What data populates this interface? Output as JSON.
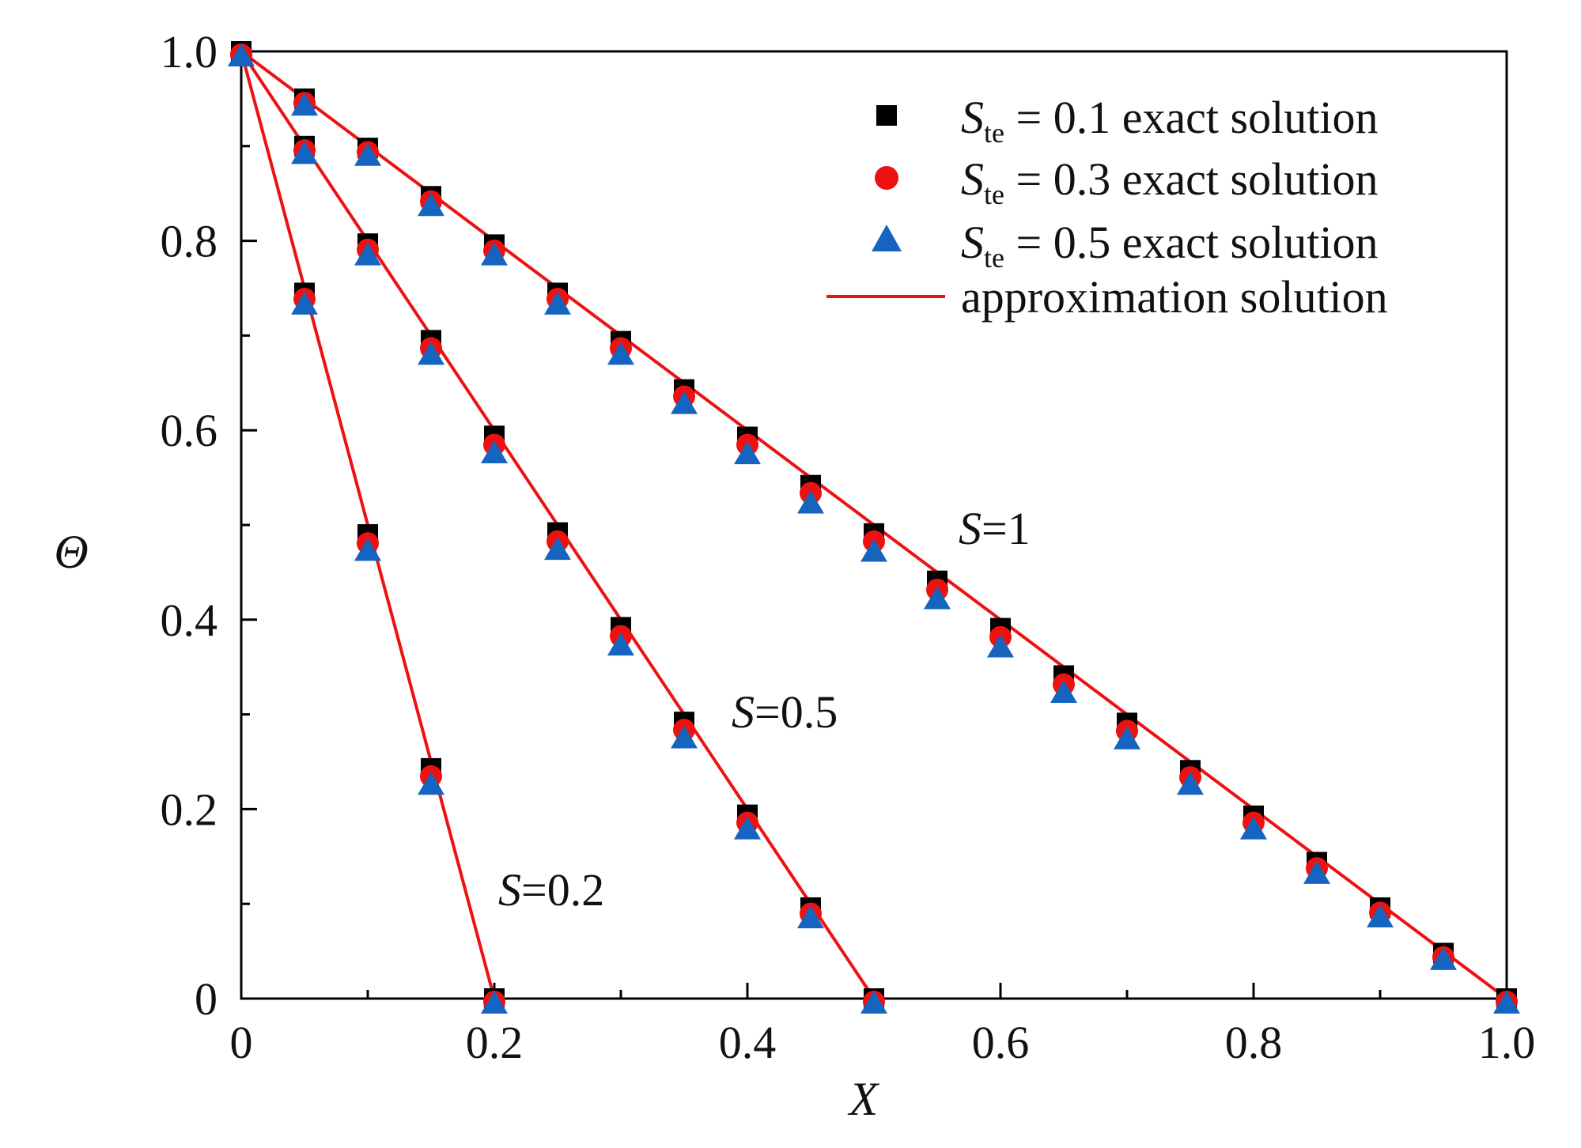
{
  "chart_data": {
    "type": "line",
    "xlabel": "X",
    "ylabel": "Θ",
    "xlim": [
      0,
      1.0
    ],
    "ylim": [
      0,
      1.0
    ],
    "xticks": [
      "0",
      "0.2",
      "0.4",
      "0.6",
      "0.8",
      "1.0"
    ],
    "yticks": [
      "0",
      "0.2",
      "0.4",
      "0.6",
      "0.8",
      "1.0"
    ],
    "grid": false,
    "legend_position": "top-right",
    "legend": [
      {
        "symbol": "S",
        "subscript": "te",
        "rest": " = 0.1 exact solution",
        "marker": "square",
        "color": "#000000"
      },
      {
        "symbol": "S",
        "subscript": "te",
        "rest": " = 0.3 exact solution",
        "marker": "circle",
        "color": "#ee1111"
      },
      {
        "symbol": "S",
        "subscript": "te",
        "rest": " = 0.5 exact solution",
        "marker": "triangle",
        "color": "#1565c0"
      },
      {
        "symbol": "",
        "subscript": "",
        "rest": "approximation solution",
        "marker": "line",
        "color": "#ee1111"
      }
    ],
    "curves": [
      {
        "label": {
          "s": "S",
          "rest": "=0.2"
        },
        "S": 0.2,
        "approximation": {
          "x": [
            0,
            0.2
          ],
          "y": [
            1.0,
            0.0
          ]
        },
        "x": [
          0,
          0.05,
          0.1,
          0.15,
          0.2
        ],
        "Ste_0.1": [
          1.0,
          0.745,
          0.49,
          0.243,
          0.0
        ],
        "Ste_0.3": [
          1.0,
          0.742,
          0.484,
          0.238,
          0.0
        ],
        "Ste_0.5": [
          1.0,
          0.738,
          0.478,
          0.231,
          0.0
        ]
      },
      {
        "label": {
          "s": "S",
          "rest": "=0.5"
        },
        "S": 0.5,
        "approximation": {
          "x": [
            0,
            0.5
          ],
          "y": [
            1.0,
            0.0
          ]
        },
        "x": [
          0,
          0.05,
          0.1,
          0.15,
          0.2,
          0.25,
          0.3,
          0.35,
          0.4,
          0.45,
          0.5
        ],
        "Ste_0.1": [
          1.0,
          0.9,
          0.797,
          0.695,
          0.594,
          0.492,
          0.392,
          0.292,
          0.194,
          0.096,
          0.0
        ],
        "Ste_0.3": [
          1.0,
          0.899,
          0.794,
          0.69,
          0.588,
          0.486,
          0.386,
          0.287,
          0.189,
          0.093,
          0.0
        ],
        "Ste_0.5": [
          1.0,
          0.897,
          0.79,
          0.685,
          0.581,
          0.479,
          0.378,
          0.28,
          0.184,
          0.09,
          0.0
        ]
      },
      {
        "label": {
          "s": "S",
          "rest": "=1"
        },
        "S": 1.0,
        "approximation": {
          "x": [
            0,
            1.0
          ],
          "y": [
            1.0,
            0.0
          ]
        },
        "x": [
          0,
          0.05,
          0.1,
          0.15,
          0.2,
          0.25,
          0.3,
          0.35,
          0.4,
          0.45,
          0.5,
          0.55,
          0.6,
          0.65,
          0.7,
          0.75,
          0.8,
          0.85,
          0.9,
          0.95,
          1.0
        ],
        "Ste_0.1": [
          1.0,
          0.95,
          0.898,
          0.847,
          0.796,
          0.745,
          0.694,
          0.643,
          0.593,
          0.542,
          0.491,
          0.441,
          0.391,
          0.341,
          0.291,
          0.241,
          0.193,
          0.144,
          0.096,
          0.048,
          0.0
        ],
        "Ste_0.3": [
          1.0,
          0.949,
          0.897,
          0.845,
          0.793,
          0.742,
          0.69,
          0.639,
          0.588,
          0.537,
          0.486,
          0.435,
          0.385,
          0.335,
          0.286,
          0.237,
          0.189,
          0.141,
          0.094,
          0.047,
          0.0
        ],
        "Ste_0.5": [
          1.0,
          0.948,
          0.895,
          0.842,
          0.79,
          0.738,
          0.685,
          0.633,
          0.58,
          0.528,
          0.477,
          0.427,
          0.376,
          0.328,
          0.279,
          0.231,
          0.184,
          0.137,
          0.091,
          0.046,
          0.0
        ]
      }
    ]
  }
}
